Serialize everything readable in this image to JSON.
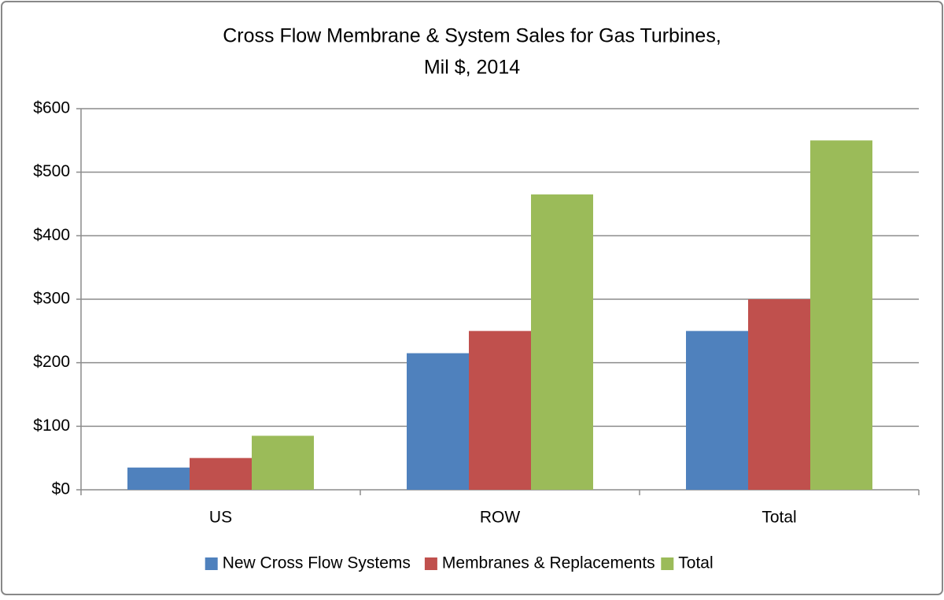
{
  "chart_data": {
    "type": "bar",
    "title": [
      "Cross Flow Membrane & System Sales for Gas Turbines,",
      "Mil $, 2014"
    ],
    "categories": [
      "US",
      "ROW",
      "Total"
    ],
    "series": [
      {
        "name": "New Cross Flow Systems",
        "color": "#4f81bd",
        "values": [
          35,
          215,
          250
        ]
      },
      {
        "name": "Membranes & Replacements",
        "color": "#c0504d",
        "values": [
          50,
          250,
          300
        ]
      },
      {
        "name": "Total",
        "color": "#9bbb59",
        "values": [
          85,
          465,
          550
        ]
      }
    ],
    "ylim": [
      0,
      600
    ],
    "yticks": [
      {
        "value": 0,
        "label": "$0"
      },
      {
        "value": 100,
        "label": "$100"
      },
      {
        "value": 200,
        "label": "$200"
      },
      {
        "value": 300,
        "label": "$300"
      },
      {
        "value": 400,
        "label": "$400"
      },
      {
        "value": 500,
        "label": "$500"
      },
      {
        "value": 600,
        "label": "$600"
      }
    ],
    "grid": true,
    "legend": "bottom"
  }
}
